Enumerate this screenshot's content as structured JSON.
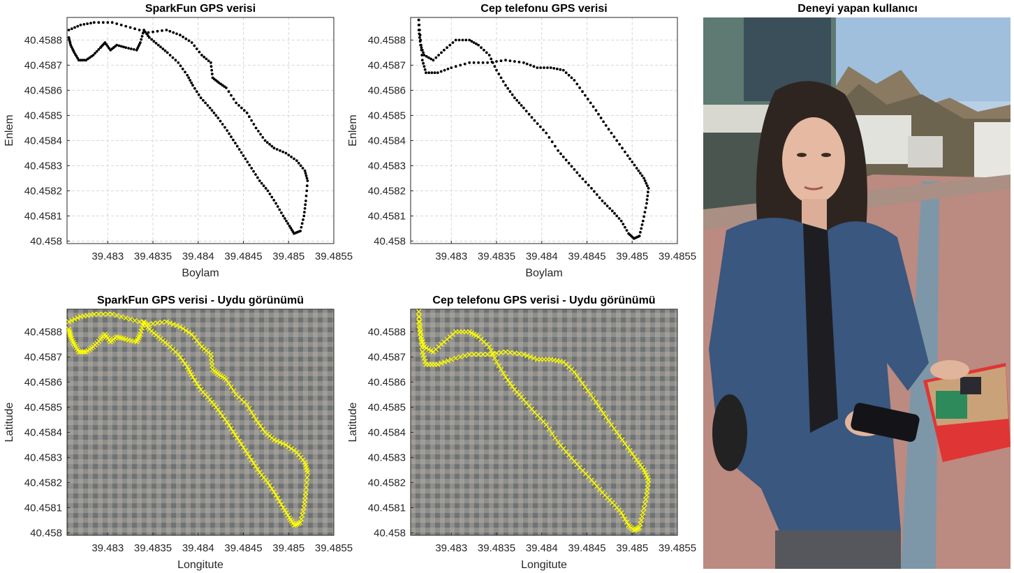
{
  "figure": {
    "panels": [
      {
        "title": "SparkFun GPS verisi",
        "xlabel": "Boylam",
        "ylabel": "Enlem"
      },
      {
        "title": "Cep telefonu GPS verisi",
        "xlabel": "Boylam",
        "ylabel": "Enlem"
      },
      {
        "title": "SparkFun GPS verisi - Uydu görünümü",
        "xlabel": "Longitute",
        "ylabel": "Latitude"
      },
      {
        "title": "Cep telefonu GPS verisi - Uydu görünümü",
        "xlabel": "Longitute",
        "ylabel": "Latitude"
      },
      {
        "title": "Deneyi yapan kullanıcı"
      }
    ]
  },
  "colors": {
    "track_points": "#000000",
    "satellite_track_markers": "#ffff00",
    "grid": "#d6d6d6"
  },
  "chart_data": [
    {
      "type": "scatter",
      "title": "SparkFun GPS verisi",
      "xlabel": "Boylam",
      "ylabel": "Enlem",
      "xlim": [
        39.48255,
        39.4855
      ],
      "ylim": [
        40.45799,
        40.45889
      ],
      "xticks": [
        "39.483",
        "39.4835",
        "39.484",
        "39.4845",
        "39.485",
        "39.4855"
      ],
      "yticks": [
        "40.458",
        "40.4581",
        "40.4582",
        "40.4583",
        "40.4584",
        "40.4585",
        "40.4586",
        "40.4587",
        "40.4588"
      ],
      "grid": true,
      "marker": "dot",
      "track": [
        {
          "x": 39.48257,
          "y": 40.45881
        },
        {
          "x": 39.48259,
          "y": 40.45878
        },
        {
          "x": 39.48263,
          "y": 40.45875
        },
        {
          "x": 39.48268,
          "y": 40.45872
        },
        {
          "x": 39.48276,
          "y": 40.45872
        },
        {
          "x": 39.48284,
          "y": 40.45874
        },
        {
          "x": 39.48292,
          "y": 40.45877
        },
        {
          "x": 39.48297,
          "y": 40.45879
        },
        {
          "x": 39.48303,
          "y": 40.45876
        },
        {
          "x": 39.4831,
          "y": 40.45878
        },
        {
          "x": 39.4832,
          "y": 40.45877
        },
        {
          "x": 39.48332,
          "y": 40.45876
        },
        {
          "x": 39.48336,
          "y": 40.45879
        },
        {
          "x": 39.4834,
          "y": 40.45884
        },
        {
          "x": 39.48346,
          "y": 40.45881
        },
        {
          "x": 39.48356,
          "y": 40.45878
        },
        {
          "x": 39.48366,
          "y": 40.45875
        },
        {
          "x": 39.48378,
          "y": 40.45871
        },
        {
          "x": 39.48388,
          "y": 40.45866
        },
        {
          "x": 39.48394,
          "y": 40.45862
        },
        {
          "x": 39.48403,
          "y": 40.45857
        },
        {
          "x": 39.48413,
          "y": 40.45853
        },
        {
          "x": 39.48422,
          "y": 40.45849
        },
        {
          "x": 39.48432,
          "y": 40.45844
        },
        {
          "x": 39.48441,
          "y": 40.45839
        },
        {
          "x": 39.4845,
          "y": 40.45834
        },
        {
          "x": 39.48459,
          "y": 40.45829
        },
        {
          "x": 39.48468,
          "y": 40.45824
        },
        {
          "x": 39.48477,
          "y": 40.4582
        },
        {
          "x": 39.48486,
          "y": 40.45815
        },
        {
          "x": 39.48494,
          "y": 40.4581
        },
        {
          "x": 39.48501,
          "y": 40.45806
        },
        {
          "x": 39.48506,
          "y": 40.45803
        },
        {
          "x": 39.48513,
          "y": 40.45804
        },
        {
          "x": 39.48517,
          "y": 40.4581
        },
        {
          "x": 39.48519,
          "y": 40.45816
        },
        {
          "x": 39.48521,
          "y": 40.45824
        },
        {
          "x": 39.48518,
          "y": 40.45828
        },
        {
          "x": 39.48509,
          "y": 40.45832
        },
        {
          "x": 39.48497,
          "y": 40.45835
        },
        {
          "x": 39.48484,
          "y": 40.45837
        },
        {
          "x": 39.48474,
          "y": 40.4584
        },
        {
          "x": 39.48464,
          "y": 40.45845
        },
        {
          "x": 39.48454,
          "y": 40.45851
        },
        {
          "x": 39.48442,
          "y": 40.45855
        },
        {
          "x": 39.48431,
          "y": 40.45861
        },
        {
          "x": 39.48423,
          "y": 40.45863
        },
        {
          "x": 39.48416,
          "y": 40.45865
        },
        {
          "x": 39.48414,
          "y": 40.45871
        },
        {
          "x": 39.48404,
          "y": 40.45874
        },
        {
          "x": 39.48393,
          "y": 40.45879
        },
        {
          "x": 39.4838,
          "y": 40.45882
        },
        {
          "x": 39.48365,
          "y": 40.45884
        },
        {
          "x": 39.48345,
          "y": 40.45883
        },
        {
          "x": 39.48325,
          "y": 40.45885
        },
        {
          "x": 39.48305,
          "y": 40.45887
        },
        {
          "x": 39.48285,
          "y": 40.45887
        },
        {
          "x": 39.4827,
          "y": 40.45886
        },
        {
          "x": 39.48257,
          "y": 40.45884
        }
      ]
    },
    {
      "type": "scatter",
      "title": "Cep telefonu GPS verisi",
      "xlabel": "Boylam",
      "ylabel": "Enlem",
      "xlim": [
        39.48255,
        39.4855
      ],
      "ylim": [
        40.45799,
        40.45889
      ],
      "xticks": [
        "39.483",
        "39.4835",
        "39.484",
        "39.4845",
        "39.485",
        "39.4855"
      ],
      "yticks": [
        "40.458",
        "40.4581",
        "40.4582",
        "40.4583",
        "40.4584",
        "40.4585",
        "40.4586",
        "40.4587",
        "40.4588"
      ],
      "grid": true,
      "marker": "dot",
      "track": [
        {
          "x": 39.48264,
          "y": 40.45892
        },
        {
          "x": 39.48264,
          "y": 40.45884
        },
        {
          "x": 39.48266,
          "y": 40.45878
        },
        {
          "x": 39.4827,
          "y": 40.45874
        },
        {
          "x": 39.4828,
          "y": 40.45872
        },
        {
          "x": 39.48292,
          "y": 40.45876
        },
        {
          "x": 39.48305,
          "y": 40.4588
        },
        {
          "x": 39.4832,
          "y": 40.4588
        },
        {
          "x": 39.4833,
          "y": 40.45878
        },
        {
          "x": 39.48342,
          "y": 40.45874
        },
        {
          "x": 39.4835,
          "y": 40.45868
        },
        {
          "x": 39.4836,
          "y": 40.45862
        },
        {
          "x": 39.4837,
          "y": 40.45857
        },
        {
          "x": 39.4838,
          "y": 40.45853
        },
        {
          "x": 39.48392,
          "y": 40.45848
        },
        {
          "x": 39.48405,
          "y": 40.45843
        },
        {
          "x": 39.48418,
          "y": 40.45836
        },
        {
          "x": 39.4843,
          "y": 40.45831
        },
        {
          "x": 39.48442,
          "y": 40.45826
        },
        {
          "x": 39.48455,
          "y": 40.45821
        },
        {
          "x": 39.48467,
          "y": 40.45816
        },
        {
          "x": 39.48478,
          "y": 40.45812
        },
        {
          "x": 39.48488,
          "y": 40.45808
        },
        {
          "x": 39.48496,
          "y": 40.45803
        },
        {
          "x": 39.48502,
          "y": 40.45801
        },
        {
          "x": 39.48508,
          "y": 40.45802
        },
        {
          "x": 39.48512,
          "y": 40.45808
        },
        {
          "x": 39.48516,
          "y": 40.45815
        },
        {
          "x": 39.48518,
          "y": 40.45821
        },
        {
          "x": 39.48513,
          "y": 40.45825
        },
        {
          "x": 39.48505,
          "y": 40.45829
        },
        {
          "x": 39.48495,
          "y": 40.45834
        },
        {
          "x": 39.48483,
          "y": 40.4584
        },
        {
          "x": 39.48471,
          "y": 40.45846
        },
        {
          "x": 39.4846,
          "y": 40.45852
        },
        {
          "x": 39.48448,
          "y": 40.45858
        },
        {
          "x": 39.48436,
          "y": 40.45864
        },
        {
          "x": 39.48424,
          "y": 40.45868
        },
        {
          "x": 39.4841,
          "y": 40.45869
        },
        {
          "x": 39.48395,
          "y": 40.45869
        },
        {
          "x": 39.4838,
          "y": 40.45871
        },
        {
          "x": 39.4836,
          "y": 40.45872
        },
        {
          "x": 39.4834,
          "y": 40.45871
        },
        {
          "x": 39.4832,
          "y": 40.45871
        },
        {
          "x": 39.483,
          "y": 40.45869
        },
        {
          "x": 39.48285,
          "y": 40.45867
        },
        {
          "x": 39.48272,
          "y": 40.45867
        },
        {
          "x": 39.48268,
          "y": 40.45872
        },
        {
          "x": 39.48266,
          "y": 40.4588
        },
        {
          "x": 39.48264,
          "y": 40.45888
        }
      ]
    },
    {
      "type": "scatter",
      "title": "SparkFun GPS verisi - Uydu görünümü",
      "xlabel": "Longitute",
      "ylabel": "Latitude",
      "xlim": [
        39.48255,
        39.4855
      ],
      "ylim": [
        40.45799,
        40.45889
      ],
      "xticks": [
        "39.483",
        "39.4835",
        "39.484",
        "39.4845",
        "39.485",
        "39.4855"
      ],
      "yticks": [
        "40.458",
        "40.4581",
        "40.4582",
        "40.4583",
        "40.4584",
        "40.4585",
        "40.4586",
        "40.4587",
        "40.4588"
      ],
      "marker": "x",
      "basemap": "satellite",
      "track_source": "SparkFun GPS verisi"
    },
    {
      "type": "scatter",
      "title": "Cep telefonu GPS verisi - Uydu görünümü",
      "xlabel": "Longitute",
      "ylabel": "Latitude",
      "xlim": [
        39.48255,
        39.4855
      ],
      "ylim": [
        40.45799,
        40.45889
      ],
      "xticks": [
        "39.483",
        "39.4835",
        "39.484",
        "39.4845",
        "39.485",
        "39.4855"
      ],
      "yticks": [
        "40.458",
        "40.4581",
        "40.4582",
        "40.4583",
        "40.4584",
        "40.4585",
        "40.4586",
        "40.4587",
        "40.4588"
      ],
      "marker": "x",
      "basemap": "satellite",
      "track_source": "Cep telefonu GPS verisi"
    }
  ]
}
